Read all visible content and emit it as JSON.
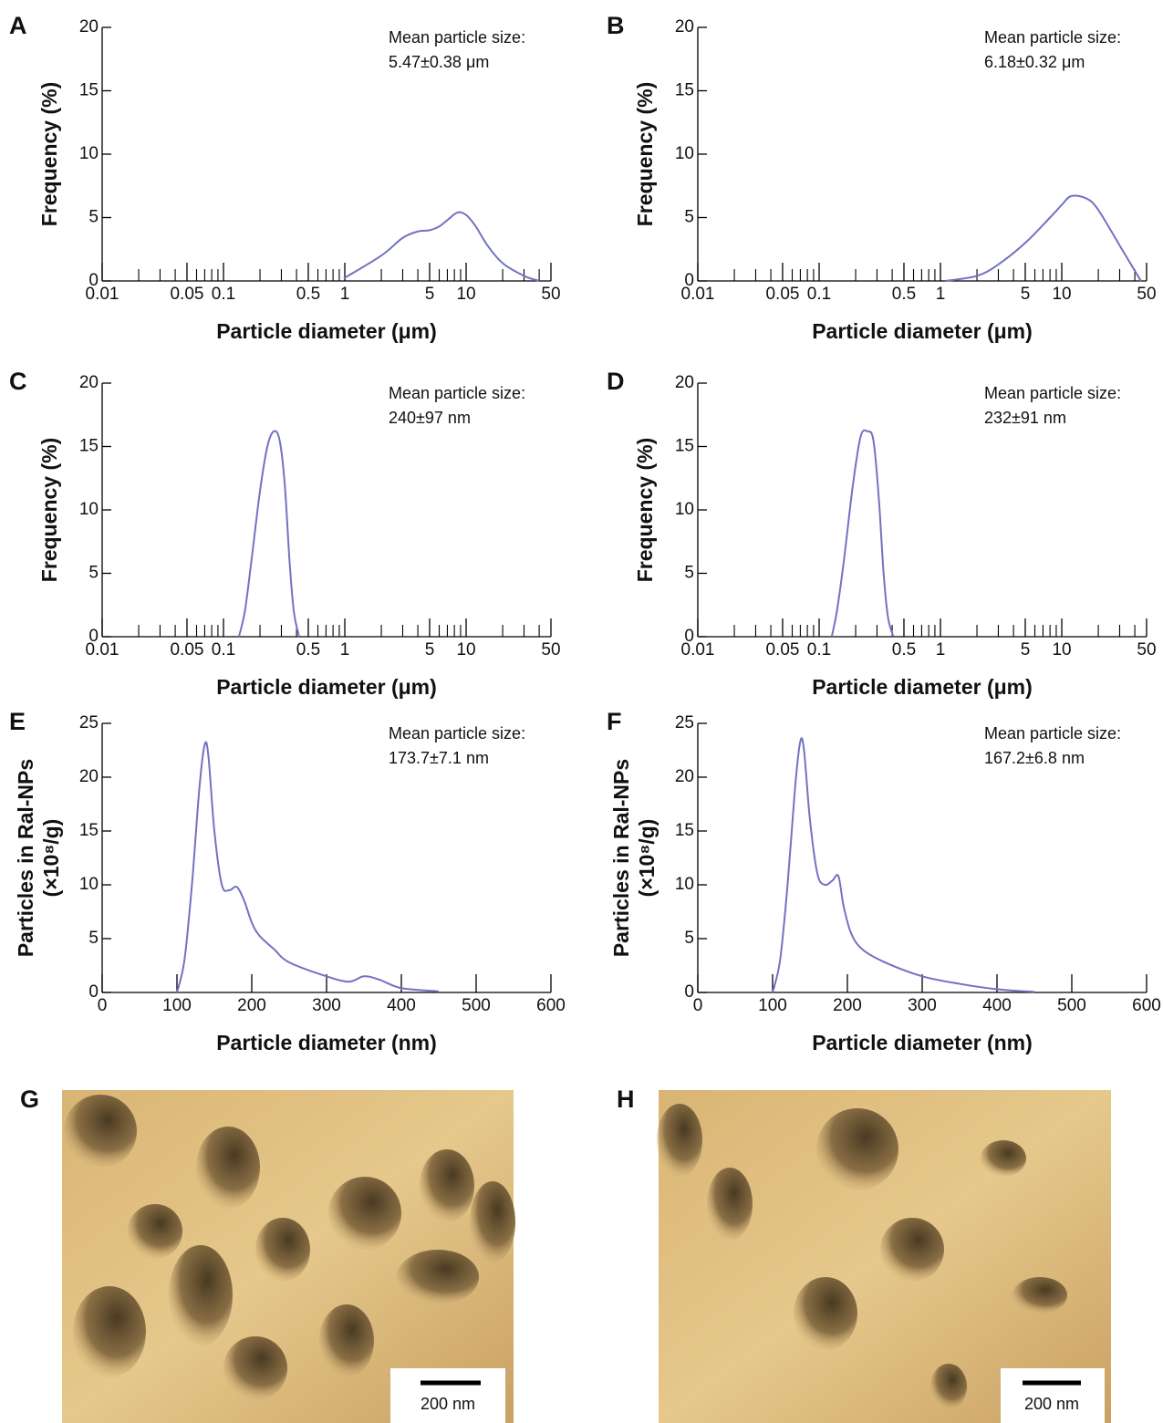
{
  "chart_data": [
    {
      "type": "line",
      "panel_label": "A",
      "xscale": "log",
      "xlim": [
        0.01,
        50
      ],
      "ylim": [
        0,
        20
      ],
      "xticks": [
        0.01,
        0.05,
        0.1,
        0.5,
        1,
        5,
        10,
        50
      ],
      "minor_xticks": [
        0.02,
        0.03,
        0.04,
        0.06,
        0.07,
        0.08,
        0.09,
        0.2,
        0.3,
        0.4,
        0.6,
        0.7,
        0.8,
        0.9,
        2,
        3,
        4,
        6,
        7,
        8,
        9,
        20,
        30,
        40
      ],
      "yticks": [
        0,
        5,
        10,
        15,
        20
      ],
      "xlabel": "Particle diameter (μm)",
      "ylabel": "Frequency (%)",
      "annotation": [
        "Mean particle size:",
        "5.47±0.38 μm"
      ],
      "color": "#7272c2",
      "x": [
        0.98,
        2,
        3,
        4,
        5,
        6,
        7,
        8.5,
        10,
        12,
        15,
        20,
        30,
        40
      ],
      "values": [
        0.2,
        2,
        3.4,
        3.9,
        4.0,
        4.3,
        4.8,
        5.4,
        5.2,
        4.3,
        2.8,
        1.4,
        0.4,
        0
      ]
    },
    {
      "type": "line",
      "panel_label": "B",
      "xscale": "log",
      "xlim": [
        0.01,
        50
      ],
      "ylim": [
        0,
        20
      ],
      "xticks": [
        0.01,
        0.05,
        0.1,
        0.5,
        1,
        5,
        10,
        50
      ],
      "minor_xticks": [
        0.02,
        0.03,
        0.04,
        0.06,
        0.07,
        0.08,
        0.09,
        0.2,
        0.3,
        0.4,
        0.6,
        0.7,
        0.8,
        0.9,
        2,
        3,
        4,
        6,
        7,
        8,
        9,
        20,
        30,
        40
      ],
      "yticks": [
        0,
        5,
        10,
        15,
        20
      ],
      "xlabel": "Particle diameter (μm)",
      "ylabel": "Frequency (%)",
      "annotation": [
        "Mean particle size:",
        "6.18±0.32 μm"
      ],
      "color": "#7272c2",
      "x": [
        1.1,
        2,
        3,
        5,
        8,
        10,
        12,
        16,
        20,
        30,
        40,
        45
      ],
      "values": [
        0,
        0.4,
        1.3,
        3.0,
        5.0,
        6.0,
        6.7,
        6.5,
        5.6,
        2.8,
        0.8,
        0
      ]
    },
    {
      "type": "line",
      "panel_label": "C",
      "xscale": "log",
      "xlim": [
        0.01,
        50
      ],
      "ylim": [
        0,
        20
      ],
      "xticks": [
        0.01,
        0.05,
        0.1,
        0.5,
        1,
        5,
        10,
        50
      ],
      "minor_xticks": [
        0.02,
        0.03,
        0.04,
        0.06,
        0.07,
        0.08,
        0.09,
        0.2,
        0.3,
        0.4,
        0.6,
        0.7,
        0.8,
        0.9,
        2,
        3,
        4,
        6,
        7,
        8,
        9,
        20,
        30,
        40
      ],
      "yticks": [
        0,
        5,
        10,
        15,
        20
      ],
      "xlabel": "Particle diameter (μm)",
      "ylabel": "Frequency (%)",
      "annotation": [
        "Mean particle size:",
        "240±97 nm"
      ],
      "color": "#7272c2",
      "x": [
        0.134,
        0.15,
        0.17,
        0.2,
        0.23,
        0.26,
        0.29,
        0.32,
        0.35,
        0.38,
        0.42
      ],
      "values": [
        0,
        2,
        6,
        11.5,
        15,
        16.2,
        15.5,
        12,
        6,
        2,
        0
      ]
    },
    {
      "type": "line",
      "panel_label": "D",
      "xscale": "log",
      "xlim": [
        0.01,
        50
      ],
      "ylim": [
        0,
        20
      ],
      "xticks": [
        0.01,
        0.05,
        0.1,
        0.5,
        1,
        5,
        10,
        50
      ],
      "minor_xticks": [
        0.02,
        0.03,
        0.04,
        0.06,
        0.07,
        0.08,
        0.09,
        0.2,
        0.3,
        0.4,
        0.6,
        0.7,
        0.8,
        0.9,
        2,
        3,
        4,
        6,
        7,
        8,
        9,
        20,
        30,
        40
      ],
      "yticks": [
        0,
        5,
        10,
        15,
        20
      ],
      "xlabel": "Particle diameter (μm)",
      "ylabel": "Frequency (%)",
      "annotation": [
        "Mean particle size:",
        "232±91 nm"
      ],
      "color": "#7272c2",
      "x": [
        0.127,
        0.14,
        0.16,
        0.19,
        0.22,
        0.25,
        0.28,
        0.31,
        0.34,
        0.37,
        0.41
      ],
      "values": [
        0,
        2,
        6,
        12,
        15.8,
        16.2,
        15.5,
        11,
        5,
        1.5,
        0
      ]
    },
    {
      "type": "line",
      "panel_label": "E",
      "xscale": "linear",
      "xlim": [
        0,
        600
      ],
      "ylim": [
        0,
        25
      ],
      "xticks": [
        0,
        100,
        200,
        300,
        400,
        500,
        600
      ],
      "yticks": [
        0,
        5,
        10,
        15,
        20,
        25
      ],
      "xlabel": "Particle diameter (nm)",
      "ylabel": [
        "Particles in Ral-NPs",
        "(×10⁸/g)"
      ],
      "annotation": [
        "Mean particle size:",
        "173.7±7.1 nm"
      ],
      "color": "#7272c2",
      "x": [
        100,
        110,
        120,
        130,
        137,
        142,
        150,
        160,
        170,
        180,
        190,
        200,
        210,
        230,
        250,
        300,
        330,
        350,
        370,
        400,
        450
      ],
      "values": [
        0,
        3,
        10,
        19,
        23,
        22,
        15,
        10,
        9.5,
        9.8,
        8.5,
        6.5,
        5.3,
        4,
        2.8,
        1.5,
        1.0,
        1.5,
        1.2,
        0.4,
        0.1
      ]
    },
    {
      "type": "line",
      "panel_label": "F",
      "xscale": "linear",
      "xlim": [
        0,
        600
      ],
      "ylim": [
        0,
        25
      ],
      "xticks": [
        0,
        100,
        200,
        300,
        400,
        500,
        600
      ],
      "yticks": [
        0,
        5,
        10,
        15,
        20,
        25
      ],
      "xlabel": "Particle diameter (nm)",
      "ylabel": [
        "Particles in Ral-NPs",
        "(×10⁸/g)"
      ],
      "annotation": [
        "Mean particle size:",
        "167.2±6.8 nm"
      ],
      "color": "#7272c2",
      "x": [
        100,
        110,
        120,
        130,
        137,
        142,
        150,
        160,
        170,
        180,
        188,
        195,
        205,
        220,
        250,
        300,
        350,
        400,
        450
      ],
      "values": [
        0,
        3,
        10,
        19,
        23.3,
        22.5,
        16,
        11,
        10,
        10.4,
        10.8,
        8,
        5.5,
        4,
        2.8,
        1.5,
        0.8,
        0.3,
        0.05
      ]
    }
  ],
  "images": [
    {
      "label": "G",
      "scale_bar": "200 nm"
    },
    {
      "label": "H",
      "scale_bar": "200 nm"
    }
  ]
}
